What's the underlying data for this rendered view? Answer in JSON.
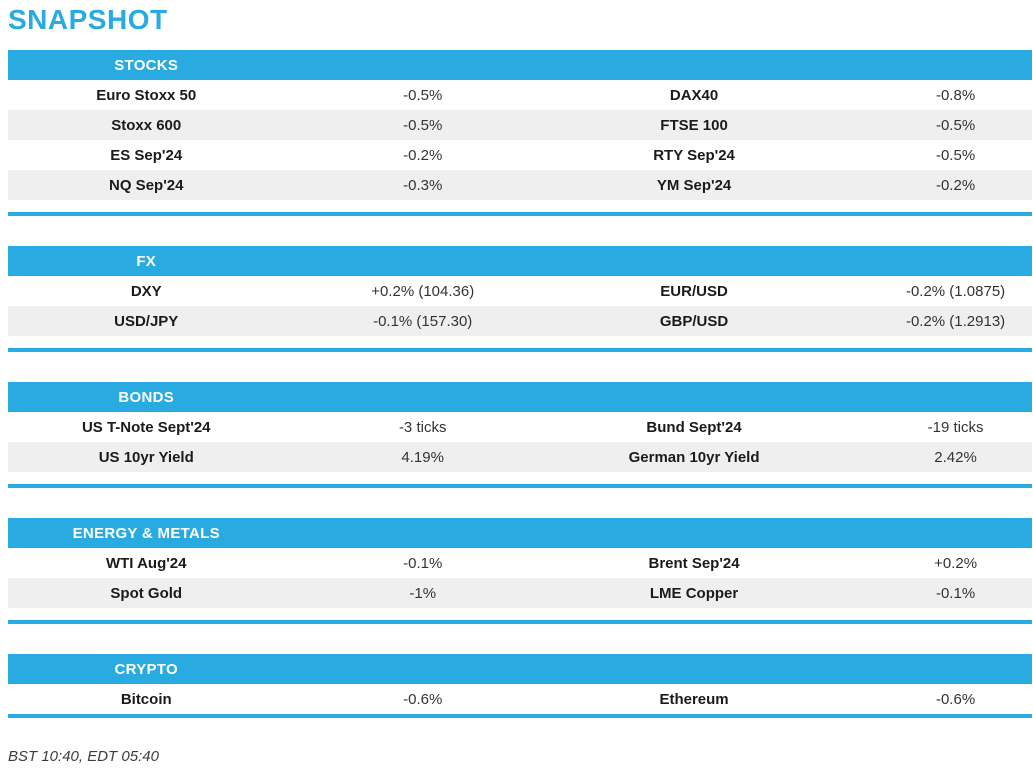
{
  "page_title": "SNAPSHOT",
  "footer_note": "BST 10:40, EDT 05:40",
  "colors": {
    "accent": "#29ABE2",
    "row_alt": "#EFEFEF",
    "header_text": "#FFFFFF"
  },
  "sections": [
    {
      "title": "STOCKS",
      "rows": [
        {
          "l1": "Euro Stoxx 50",
          "v1": "-0.5%",
          "l2": "DAX40",
          "v2": "-0.8%"
        },
        {
          "l1": "Stoxx 600",
          "v1": "-0.5%",
          "l2": "FTSE 100",
          "v2": "-0.5%"
        },
        {
          "l1": "ES Sep'24",
          "v1": "-0.2%",
          "l2": "RTY Sep'24",
          "v2": "-0.5%"
        },
        {
          "l1": "NQ Sep'24",
          "v1": "-0.3%",
          "l2": "YM Sep'24",
          "v2": "-0.2%"
        }
      ]
    },
    {
      "title": "FX",
      "rows": [
        {
          "l1": "DXY",
          "v1": "+0.2% (104.36)",
          "l2": "EUR/USD",
          "v2": "-0.2% (1.0875)"
        },
        {
          "l1": "USD/JPY",
          "v1": "-0.1% (157.30)",
          "l2": "GBP/USD",
          "v2": "-0.2% (1.2913)"
        }
      ]
    },
    {
      "title": "BONDS",
      "rows": [
        {
          "l1": "US T-Note Sept'24",
          "v1": "-3 ticks",
          "l2": "Bund Sept'24",
          "v2": "-19 ticks"
        },
        {
          "l1": "US 10yr Yield",
          "v1": "4.19%",
          "l2": "German 10yr Yield",
          "v2": "2.42%"
        }
      ]
    },
    {
      "title": "ENERGY & METALS",
      "rows": [
        {
          "l1": "WTI Aug'24",
          "v1": "-0.1%",
          "l2": "Brent Sep'24",
          "v2": "+0.2%"
        },
        {
          "l1": "Spot Gold",
          "v1": "-1%",
          "l2": "LME Copper",
          "v2": "-0.1%"
        }
      ]
    },
    {
      "title": "CRYPTO",
      "rows": [
        {
          "l1": "Bitcoin",
          "v1": "-0.6%",
          "l2": "Ethereum",
          "v2": "-0.6%"
        }
      ]
    }
  ]
}
